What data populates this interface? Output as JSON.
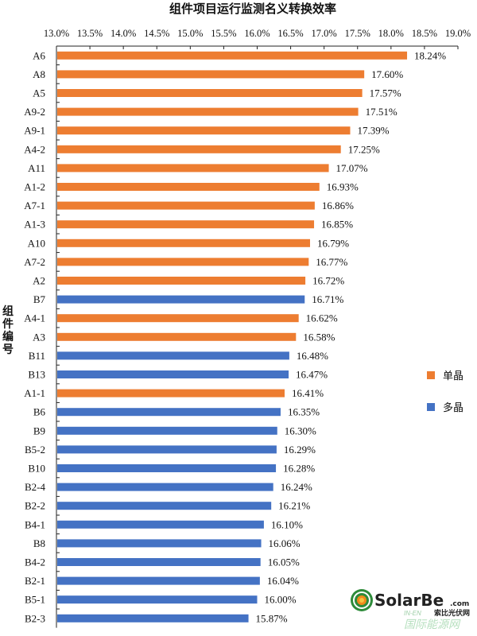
{
  "chart_data": {
    "type": "bar",
    "orientation": "horizontal",
    "title": "组件项目运行监测名义转换效率",
    "xlabel": "",
    "ylabel": "组件编号",
    "xlim": [
      13.0,
      19.0
    ],
    "xticks": [
      "13.0%",
      "13.5%",
      "14.0%",
      "14.5%",
      "15.0%",
      "15.5%",
      "16.0%",
      "16.5%",
      "17.0%",
      "17.5%",
      "18.0%",
      "18.5%",
      "19.0%"
    ],
    "xtick_values": [
      13.0,
      13.5,
      14.0,
      14.5,
      15.0,
      15.5,
      16.0,
      16.5,
      17.0,
      17.5,
      18.0,
      18.5,
      19.0
    ],
    "x_axis_position": "top",
    "grid": false,
    "legend": {
      "position": "right",
      "entries": [
        {
          "name": "单晶",
          "color": "#ED7D31"
        },
        {
          "name": "多晶",
          "color": "#4472C4"
        }
      ]
    },
    "categories": [
      "A6",
      "A8",
      "A5",
      "A9-2",
      "A9-1",
      "A4-2",
      "A11",
      "A1-2",
      "A7-1",
      "A1-3",
      "A10",
      "A7-2",
      "A2",
      "B7",
      "A4-1",
      "A3",
      "B11",
      "B13",
      "A1-1",
      "B6",
      "B9",
      "B5-2",
      "B10",
      "B2-4",
      "B2-2",
      "B4-1",
      "B8",
      "B4-2",
      "B2-1",
      "B5-1",
      "B2-3"
    ],
    "values": [
      18.24,
      17.6,
      17.57,
      17.51,
      17.39,
      17.25,
      17.07,
      16.93,
      16.86,
      16.85,
      16.79,
      16.77,
      16.72,
      16.71,
      16.62,
      16.58,
      16.48,
      16.47,
      16.41,
      16.35,
      16.3,
      16.29,
      16.28,
      16.24,
      16.21,
      16.1,
      16.06,
      16.05,
      16.04,
      16.0,
      15.87
    ],
    "value_labels": [
      "18.24%",
      "17.60%",
      "17.57%",
      "17.51%",
      "17.39%",
      "17.25%",
      "17.07%",
      "16.93%",
      "16.86%",
      "16.85%",
      "16.79%",
      "16.77%",
      "16.72%",
      "16.71%",
      "16.62%",
      "16.58%",
      "16.48%",
      "16.47%",
      "16.41%",
      "16.35%",
      "16.30%",
      "16.29%",
      "16.28%",
      "16.24%",
      "16.21%",
      "16.10%",
      "16.06%",
      "16.05%",
      "16.04%",
      "16.00%",
      "15.87%"
    ],
    "series_type": [
      "单晶",
      "单晶",
      "单晶",
      "单晶",
      "单晶",
      "单晶",
      "单晶",
      "单晶",
      "单晶",
      "单晶",
      "单晶",
      "单晶",
      "单晶",
      "多晶",
      "单晶",
      "单晶",
      "多晶",
      "多晶",
      "单晶",
      "多晶",
      "多晶",
      "多晶",
      "多晶",
      "多晶",
      "多晶",
      "多晶",
      "多晶",
      "多晶",
      "多晶",
      "多晶",
      "多晶"
    ]
  },
  "watermark": {
    "brand": "SolarBe",
    "domain_suffix": ".com",
    "subtitle_cn": "索比光伏网",
    "secondary_brand": "IN-EN",
    "secondary_cn": "国际能源网",
    "colors": {
      "green": "#2E8B3A",
      "orange": "#F08A1C",
      "dark": "#222222"
    }
  }
}
